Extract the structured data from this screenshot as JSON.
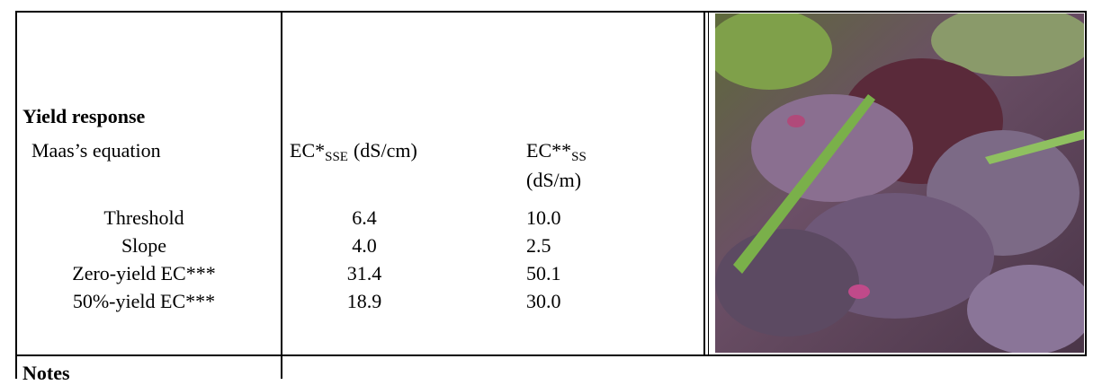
{
  "table": {
    "title": "Yield response",
    "subtitle": "Maas’s equation",
    "columns": [
      {
        "name": "EC*",
        "sub": "SSE",
        "unit": "(dS/cm)"
      },
      {
        "name": "EC**",
        "sub": "SS",
        "unit": "(dS/m)"
      }
    ],
    "rows": [
      [
        "Threshold",
        "6.4",
        "10.0"
      ],
      [
        "Slope",
        "4.0",
        "2.5"
      ],
      [
        "Zero-yield EC***",
        "31.4",
        "50.1"
      ],
      [
        "50%-yield EC***",
        "18.9",
        "30.0"
      ]
    ],
    "notes": "Notes"
  }
}
